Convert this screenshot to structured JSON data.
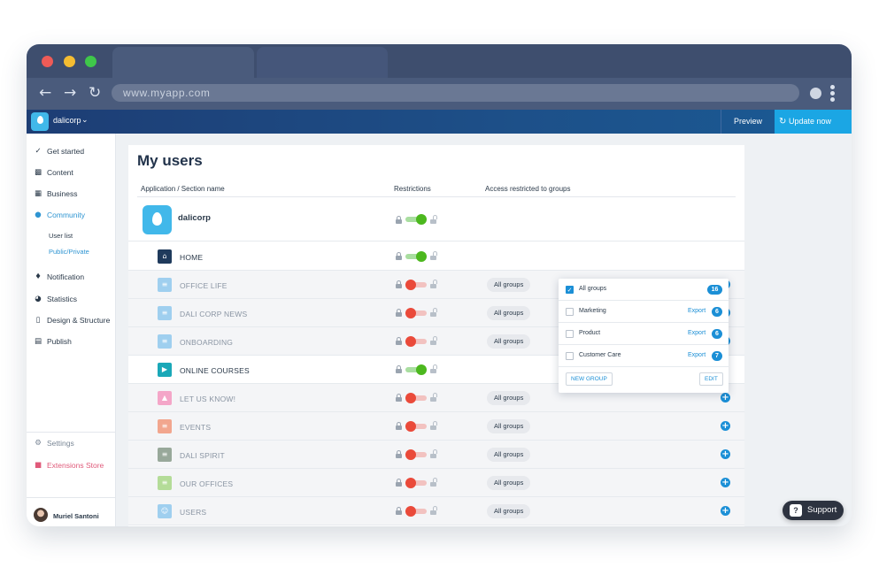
{
  "browser": {
    "url": "www.myapp.com"
  },
  "header": {
    "org_name": "dalicorp",
    "preview_label": "Preview",
    "update_label": "Update now"
  },
  "sidebar": {
    "items": [
      {
        "label": "Get started",
        "icon": "check-circle-icon"
      },
      {
        "label": "Content",
        "icon": "document-icon"
      },
      {
        "label": "Business",
        "icon": "store-icon"
      },
      {
        "label": "Community",
        "icon": "person-icon",
        "active": true
      },
      {
        "label": "Notification",
        "icon": "bell-icon"
      },
      {
        "label": "Statistics",
        "icon": "chart-icon"
      },
      {
        "label": "Design & Structure",
        "icon": "phone-icon"
      },
      {
        "label": "Publish",
        "icon": "publish-icon"
      }
    ],
    "sub_items": [
      {
        "label": "User list"
      },
      {
        "label": "Public/Private"
      }
    ],
    "settings_label": "Settings",
    "extensions_label": "Extensions Store",
    "user_name": "Muriel Santoni"
  },
  "main": {
    "title": "My users",
    "columns": {
      "section": "Application / Section name",
      "restrictions": "Restrictions",
      "groups": "Access restricted to groups"
    },
    "app_row": {
      "name": "dalicorp",
      "restricted": false
    },
    "rows": [
      {
        "name": "HOME",
        "restricted": false,
        "groups": "",
        "icon": "home-icon",
        "icon_color": "#1f3a5c"
      },
      {
        "name": "OFFICE LIFE",
        "restricted": true,
        "groups": "All groups",
        "icon": "page-icon",
        "icon_color": "#9fcfef"
      },
      {
        "name": "DALI CORP NEWS",
        "restricted": true,
        "groups": "All groups",
        "icon": "page-icon",
        "icon_color": "#9fcfef"
      },
      {
        "name": "ONBOARDING",
        "restricted": true,
        "groups": "All groups",
        "icon": "page-icon",
        "icon_color": "#9fcfef"
      },
      {
        "name": "ONLINE COURSES",
        "restricted": false,
        "groups": "",
        "icon": "video-icon",
        "icon_color": "#1aa8b8"
      },
      {
        "name": "LET US KNOW!",
        "restricted": true,
        "groups": "All groups",
        "icon": "form-icon",
        "icon_color": "#f4a6c8"
      },
      {
        "name": "EVENTS",
        "restricted": true,
        "groups": "All groups",
        "icon": "page-icon",
        "icon_color": "#f2a68e"
      },
      {
        "name": "DALI SPIRIT",
        "restricted": true,
        "groups": "All groups",
        "icon": "page-icon",
        "icon_color": "#98a89a"
      },
      {
        "name": "OUR OFFICES",
        "restricted": true,
        "groups": "All groups",
        "icon": "page-icon",
        "icon_color": "#b4dc98"
      },
      {
        "name": "USERS",
        "restricted": true,
        "groups": "All groups",
        "icon": "users-icon",
        "icon_color": "#9fcfef"
      }
    ]
  },
  "groups_dropdown": {
    "items": [
      {
        "label": "All groups",
        "checked": true,
        "export": "",
        "count": "16"
      },
      {
        "label": "Marketing",
        "checked": false,
        "export": "Export",
        "count": "6"
      },
      {
        "label": "Product",
        "checked": false,
        "export": "Export",
        "count": "6"
      },
      {
        "label": "Customer Care",
        "checked": false,
        "export": "Export",
        "count": "7"
      }
    ],
    "new_group_label": "NEW GROUP",
    "edit_label": "EDIT"
  },
  "support_label": "Support",
  "colors": {
    "accent": "#1b8fd6",
    "toggle_on": "#4cb81e",
    "toggle_off": "#ea4a3a",
    "header": "#1d3d74"
  }
}
